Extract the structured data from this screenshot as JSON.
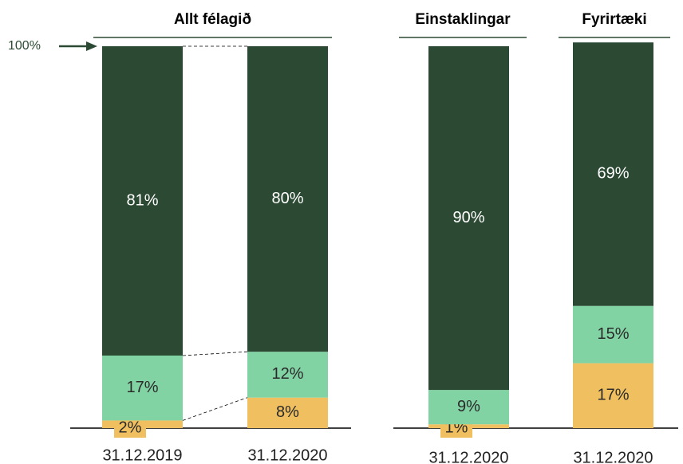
{
  "chart_data": [
    {
      "type": "bar",
      "stacked": true,
      "title": "Allt félagið",
      "categories": [
        "31.12.2019",
        "31.12.2020"
      ],
      "ylim": [
        0,
        100
      ],
      "annotation": {
        "value": 100,
        "label": "100%"
      },
      "series": [
        {
          "color": "#f0c060",
          "values": [
            2,
            8
          ],
          "value_labels": [
            "2%",
            "8%"
          ]
        },
        {
          "color": "#82d3a4",
          "values": [
            17,
            12
          ],
          "value_labels": [
            "17%",
            "12%"
          ]
        },
        {
          "color": "#2c4a33",
          "values": [
            81,
            80
          ],
          "value_labels": [
            "81%",
            "80%"
          ]
        }
      ]
    },
    {
      "type": "bar",
      "stacked": true,
      "title": "Einstaklingar",
      "categories": [
        "31.12.2020"
      ],
      "ylim": [
        0,
        100
      ],
      "series": [
        {
          "color": "#f0c060",
          "values": [
            1
          ],
          "value_labels": [
            "1%"
          ]
        },
        {
          "color": "#82d3a4",
          "values": [
            9
          ],
          "value_labels": [
            "9%"
          ]
        },
        {
          "color": "#2c4a33",
          "values": [
            90
          ],
          "value_labels": [
            "90%"
          ]
        }
      ]
    },
    {
      "type": "bar",
      "stacked": true,
      "title": "Fyrirtæki",
      "categories": [
        "31.12.2020"
      ],
      "ylim": [
        0,
        100
      ],
      "series": [
        {
          "color": "#f0c060",
          "values": [
            17
          ],
          "value_labels": [
            "17%"
          ]
        },
        {
          "color": "#82d3a4",
          "values": [
            15
          ],
          "value_labels": [
            "15%"
          ]
        },
        {
          "color": "#2c4a33",
          "values": [
            69
          ],
          "value_labels": [
            "69%"
          ]
        }
      ]
    }
  ]
}
